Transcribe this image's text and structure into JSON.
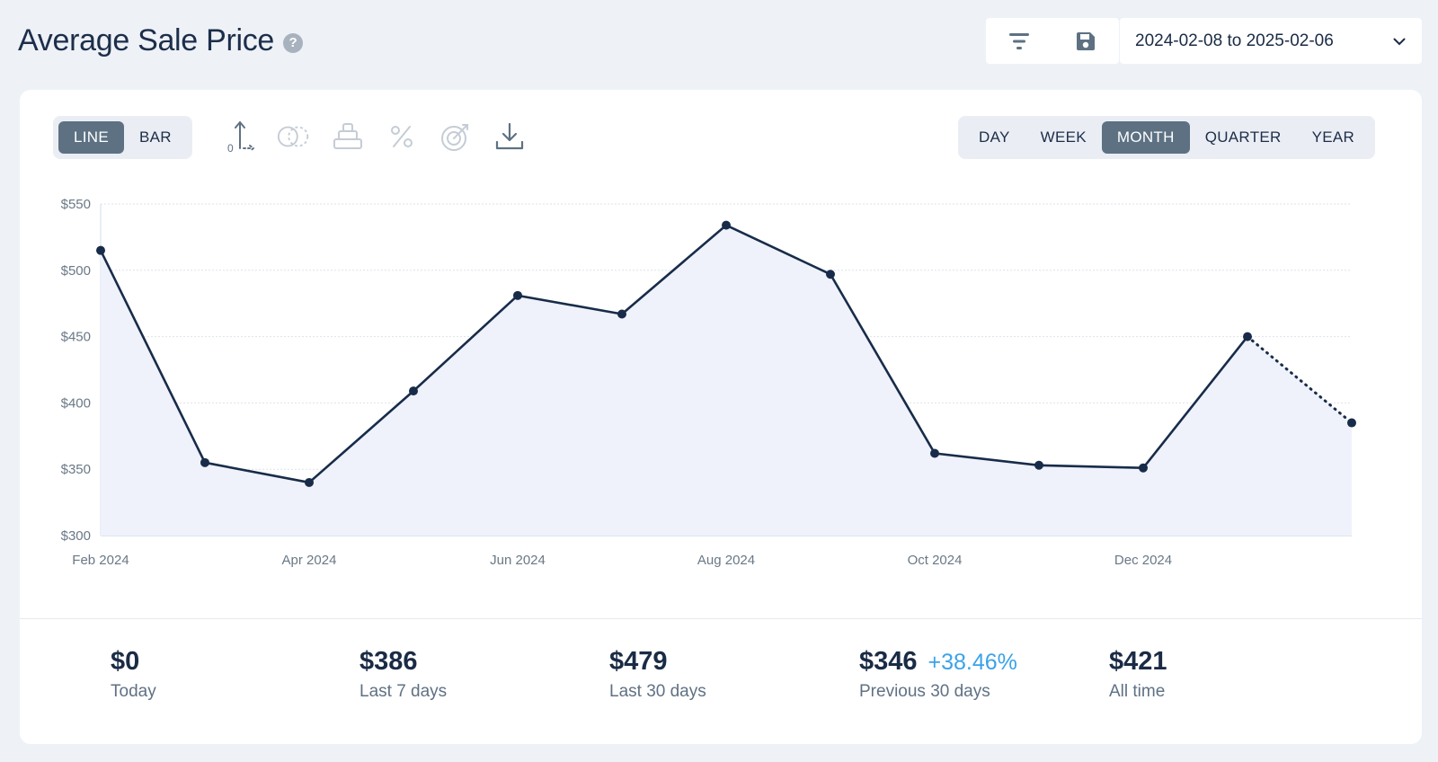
{
  "header": {
    "title": "Average Sale Price",
    "help_icon": "?",
    "date_range": "2024-02-08 to 2025-02-06"
  },
  "chart_type_toggle": [
    {
      "label": "LINE",
      "active": true
    },
    {
      "label": "BAR",
      "active": false
    }
  ],
  "period_toggle": [
    {
      "label": "DAY",
      "active": false
    },
    {
      "label": "WEEK",
      "active": false
    },
    {
      "label": "MONTH",
      "active": true
    },
    {
      "label": "QUARTER",
      "active": false
    },
    {
      "label": "YEAR",
      "active": false
    }
  ],
  "icons": {
    "filter": "filter-icon",
    "save": "save-icon",
    "chevron": "chevron-down-icon",
    "axis": "axis-icon",
    "compare": "compare-icon",
    "stack": "stack-icon",
    "percent": "percent-icon",
    "target": "target-icon",
    "download": "download-icon"
  },
  "colors": {
    "line": "#182c49",
    "fill": "#eff2fb",
    "active_toggle": "#5d7183",
    "change_positive": "#3ba2e8"
  },
  "chart_data": {
    "type": "line",
    "x": [
      "2024-02",
      "2024-03",
      "2024-04",
      "2024-05",
      "2024-06",
      "2024-07",
      "2024-08",
      "2024-09",
      "2024-10",
      "2024-11",
      "2024-12",
      "2025-01",
      "2025-02"
    ],
    "series": [
      {
        "values": [
          515,
          355,
          340,
          409,
          481,
          467,
          534,
          497,
          362,
          353,
          351,
          450,
          385
        ]
      }
    ],
    "partial_last_point": true,
    "x_tick_labels": [
      {
        "at": "2024-02",
        "label": "Feb 2024"
      },
      {
        "at": "2024-04",
        "label": "Apr 2024"
      },
      {
        "at": "2024-06",
        "label": "Jun 2024"
      },
      {
        "at": "2024-08",
        "label": "Aug 2024"
      },
      {
        "at": "2024-10",
        "label": "Oct 2024"
      },
      {
        "at": "2024-12",
        "label": "Dec 2024"
      }
    ],
    "y_ticks": [
      300,
      350,
      400,
      450,
      500,
      550
    ],
    "y_tick_labels": [
      "$300",
      "$350",
      "$400",
      "$450",
      "$500",
      "$550"
    ],
    "ylim": [
      300,
      550
    ],
    "grid": true,
    "area_fill": true
  },
  "stats": [
    {
      "value": "$0",
      "label": "Today",
      "change": ""
    },
    {
      "value": "$386",
      "label": "Last 7 days",
      "change": ""
    },
    {
      "value": "$479",
      "label": "Last 30 days",
      "change": ""
    },
    {
      "value": "$346",
      "label": "Previous 30 days",
      "change": "+38.46%"
    },
    {
      "value": "$421",
      "label": "All time",
      "change": ""
    }
  ]
}
